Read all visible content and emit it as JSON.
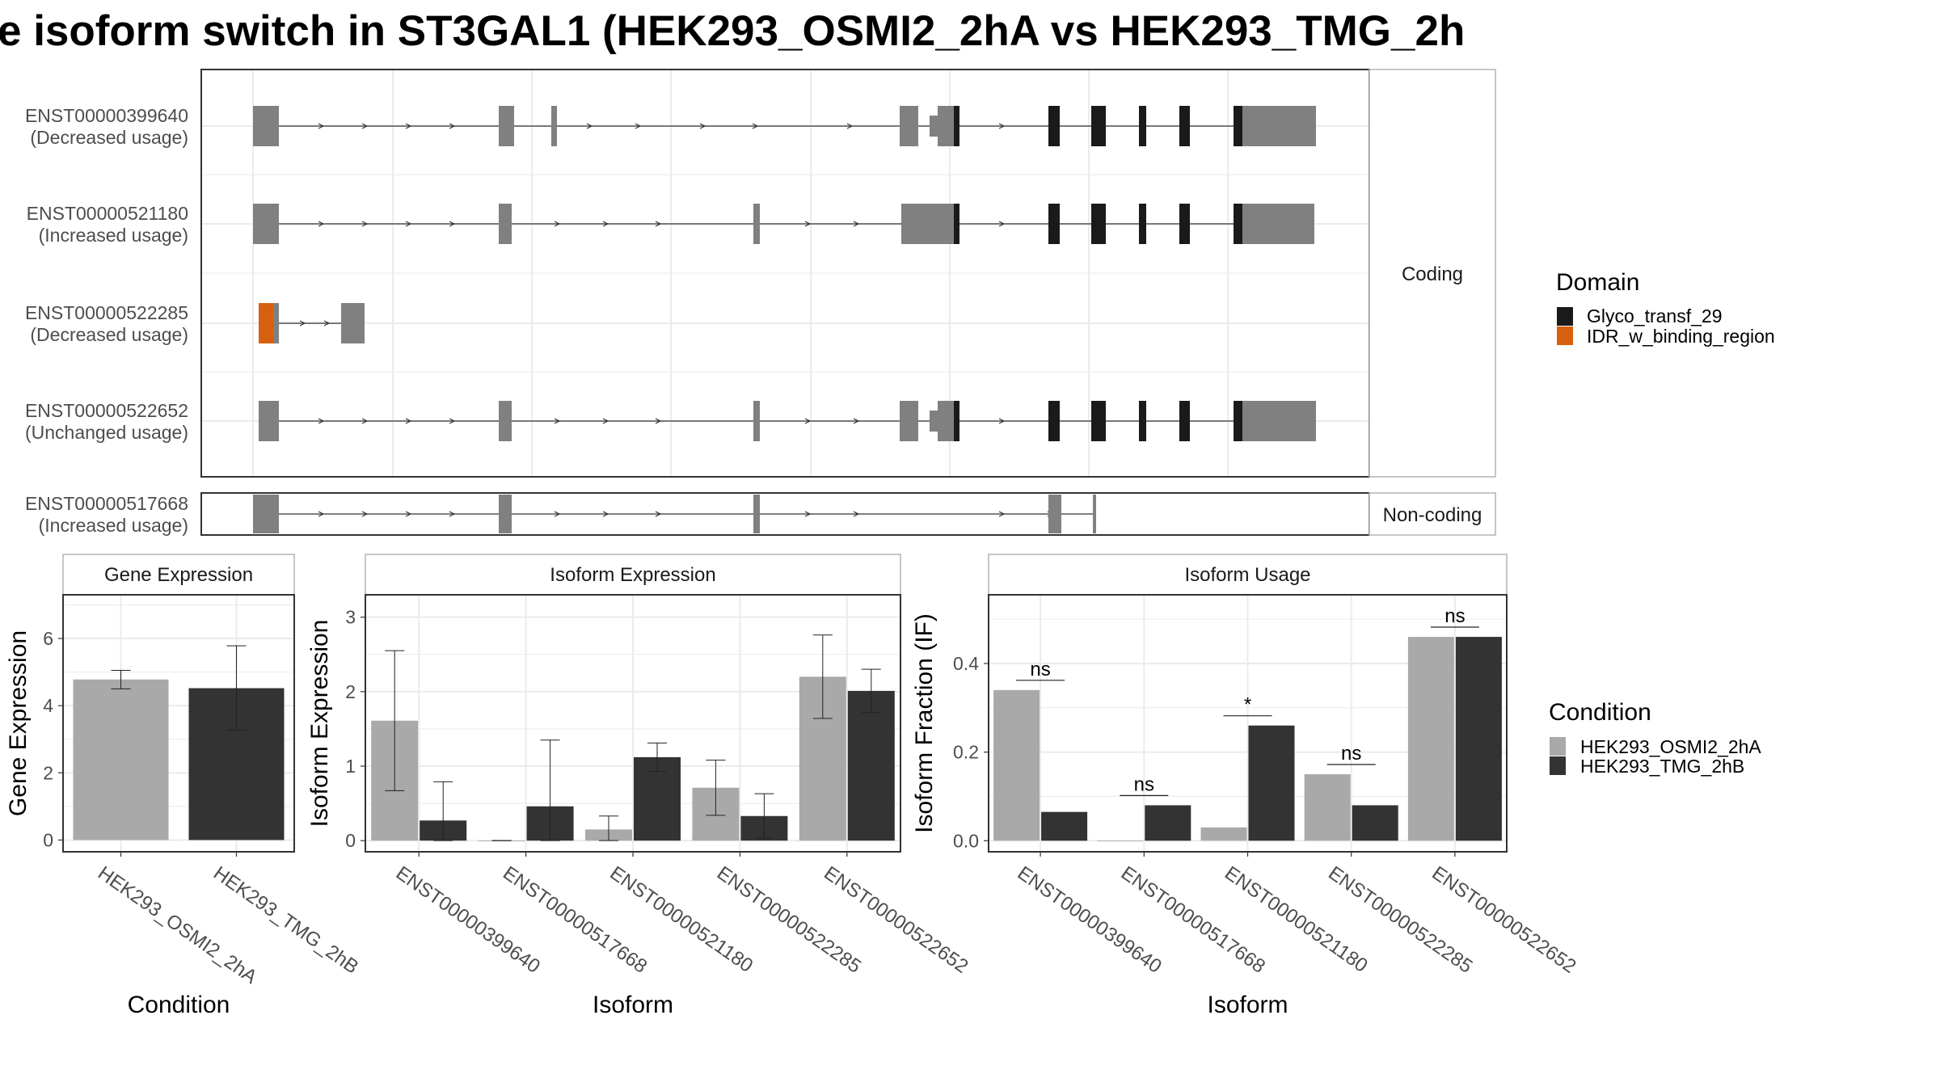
{
  "title": "e isoform switch in ST3GAL1 (HEK293_OSMI2_2hA vs HEK293_TMG_2h",
  "colors": {
    "exon": "#808080",
    "glyco": "#1a1a1a",
    "idr": "#d6600f",
    "cond1": "#a9a9a9",
    "cond2": "#333333",
    "grid": "#ebebeb",
    "panel_border": "#333333",
    "strip_border": "#b3b3b3",
    "text": "#4d4d4d",
    "text_dark": "#1a1a1a"
  },
  "structure": {
    "strip_coding": "Coding",
    "strip_noncoding": "Non-coding",
    "transcripts": [
      {
        "id": "ENST00000399640",
        "usage": "(Decreased usage)"
      },
      {
        "id": "ENST00000521180",
        "usage": "(Increased usage)"
      },
      {
        "id": "ENST00000522285",
        "usage": "(Decreased usage)"
      },
      {
        "id": "ENST00000522652",
        "usage": "(Unchanged usage)"
      },
      {
        "id": "ENST00000517668",
        "usage": "(Increased usage)"
      }
    ]
  },
  "legend_domain": {
    "title": "Domain",
    "items": [
      "Glyco_transf_29",
      "IDR_w_binding_region"
    ]
  },
  "legend_condition": {
    "title": "Condition",
    "items": [
      "HEK293_OSMI2_2hA",
      "HEK293_TMG_2hB"
    ]
  },
  "chart_data": [
    {
      "type": "bar",
      "strip": "Gene Expression",
      "xlabel": "Condition",
      "ylabel": "Gene Expression",
      "categories": [
        "HEK293_OSMI2_2hA",
        "HEK293_TMG_2hB"
      ],
      "values": [
        4.78,
        4.52
      ],
      "error": [
        [
          4.5,
          5.05
        ],
        [
          3.27,
          5.78
        ]
      ],
      "yticks": [
        "0",
        "2",
        "4",
        "6"
      ],
      "ylim": [
        -0.35,
        7.3
      ]
    },
    {
      "type": "bar",
      "strip": "Isoform Expression",
      "xlabel": "Isoform",
      "ylabel": "Isoform Expression",
      "categories": [
        "ENST00000399640",
        "ENST00000517668",
        "ENST00000521180",
        "ENST00000522285",
        "ENST00000522652"
      ],
      "series": [
        {
          "name": "HEK293_OSMI2_2hA",
          "values": [
            1.61,
            0.0,
            0.15,
            0.71,
            2.2
          ],
          "error": [
            [
              0.67,
              2.55
            ],
            [
              0.0,
              0.0
            ],
            [
              0.0,
              0.33
            ],
            [
              0.34,
              1.08
            ],
            [
              1.64,
              2.76
            ]
          ]
        },
        {
          "name": "HEK293_TMG_2hB",
          "values": [
            0.27,
            0.46,
            1.12,
            0.33,
            2.01
          ],
          "error": [
            [
              0.0,
              0.79
            ],
            [
              0.0,
              1.35
            ],
            [
              0.93,
              1.31
            ],
            [
              0.03,
              0.63
            ],
            [
              1.72,
              2.3
            ]
          ]
        }
      ],
      "yticks": [
        "0",
        "1",
        "2",
        "3"
      ],
      "ylim": [
        -0.15,
        3.3
      ]
    },
    {
      "type": "bar",
      "strip": "Isoform Usage",
      "xlabel": "Isoform",
      "ylabel": "Isoform Fraction (IF)",
      "categories": [
        "ENST00000399640",
        "ENST00000517668",
        "ENST00000521180",
        "ENST00000522285",
        "ENST00000522652"
      ],
      "series": [
        {
          "name": "HEK293_OSMI2_2hA",
          "values": [
            0.34,
            0.0,
            0.03,
            0.15,
            0.46
          ]
        },
        {
          "name": "HEK293_TMG_2hB",
          "values": [
            0.065,
            0.08,
            0.26,
            0.08,
            0.46
          ]
        }
      ],
      "significance": [
        "ns",
        "ns",
        "*",
        "ns",
        "ns"
      ],
      "yticks": [
        "0.0",
        "0.2",
        "0.4"
      ],
      "ylim": [
        -0.025,
        0.555
      ]
    }
  ]
}
